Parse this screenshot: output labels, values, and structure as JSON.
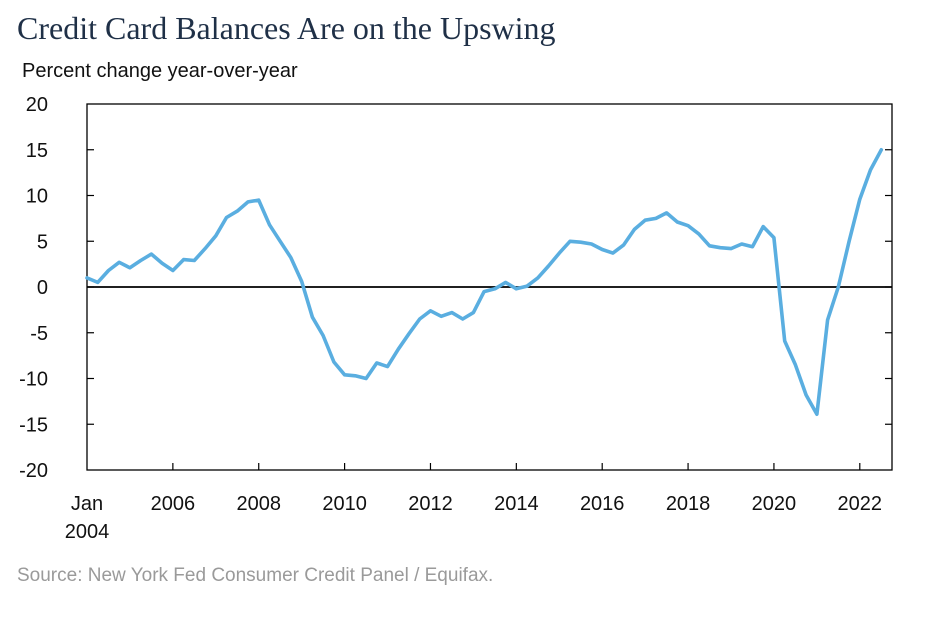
{
  "title": "Credit Card Balances Are on the Upswing",
  "subtitle": "Percent change year-over-year",
  "source": "Source: New York Fed Consumer Credit Panel / Equifax.",
  "colors": {
    "series": "#5aaee0",
    "zero_line": "#000000",
    "axis": "#000000",
    "title": "#1f3047",
    "source": "#9a9a9a"
  },
  "chart_data": {
    "type": "line",
    "ylabel": "Percent change year-over-year",
    "ylim": [
      -20,
      20
    ],
    "yticks": [
      20,
      15,
      10,
      5,
      0,
      -5,
      -10,
      -15,
      -20
    ],
    "xlim": [
      2004,
      2022.75
    ],
    "xticks": [
      {
        "x": 2004,
        "label": "Jan",
        "sublabel": "2004"
      },
      {
        "x": 2006,
        "label": "2006"
      },
      {
        "x": 2008,
        "label": "2008"
      },
      {
        "x": 2010,
        "label": "2010"
      },
      {
        "x": 2012,
        "label": "2012"
      },
      {
        "x": 2014,
        "label": "2014"
      },
      {
        "x": 2016,
        "label": "2016"
      },
      {
        "x": 2018,
        "label": "2018"
      },
      {
        "x": 2020,
        "label": "2020"
      },
      {
        "x": 2022,
        "label": "2022"
      }
    ],
    "grid": false,
    "legend": "none",
    "series": [
      {
        "x": [
          2004.0,
          2004.25,
          2004.5,
          2004.75,
          2005.0,
          2005.25,
          2005.5,
          2005.75,
          2006.0,
          2006.25,
          2006.5,
          2006.75,
          2007.0,
          2007.25,
          2007.5,
          2007.75,
          2008.0,
          2008.25,
          2008.5,
          2008.75,
          2009.0,
          2009.25,
          2009.5,
          2009.75,
          2010.0,
          2010.25,
          2010.5,
          2010.75,
          2011.0,
          2011.25,
          2011.5,
          2011.75,
          2012.0,
          2012.25,
          2012.5,
          2012.75,
          2013.0,
          2013.25,
          2013.5,
          2013.75,
          2014.0,
          2014.25,
          2014.5,
          2014.75,
          2015.0,
          2015.25,
          2015.5,
          2015.75,
          2016.0,
          2016.25,
          2016.5,
          2016.75,
          2017.0,
          2017.25,
          2017.5,
          2017.75,
          2018.0,
          2018.25,
          2018.5,
          2018.75,
          2019.0,
          2019.25,
          2019.5,
          2019.75,
          2020.0,
          2020.25,
          2020.5,
          2020.75,
          2021.0,
          2021.25,
          2021.5,
          2021.75,
          2022.0,
          2022.25,
          2022.5
        ],
        "values": [
          1.0,
          0.5,
          1.8,
          2.7,
          2.1,
          2.9,
          3.6,
          2.6,
          1.8,
          3.0,
          2.9,
          4.2,
          5.6,
          7.6,
          8.3,
          9.3,
          9.5,
          6.8,
          5.0,
          3.2,
          0.6,
          -3.3,
          -5.3,
          -8.2,
          -9.6,
          -9.7,
          -10.0,
          -8.3,
          -8.7,
          -6.8,
          -5.1,
          -3.5,
          -2.6,
          -3.2,
          -2.8,
          -3.5,
          -2.8,
          -0.5,
          -0.2,
          0.5,
          -0.2,
          0.1,
          1.0,
          2.3,
          3.7,
          5.0,
          4.9,
          4.7,
          4.1,
          3.7,
          4.6,
          6.3,
          7.3,
          7.5,
          8.1,
          7.1,
          6.7,
          5.8,
          4.5,
          4.3,
          4.2,
          4.7,
          4.4,
          6.6,
          5.4,
          -5.9,
          -8.5,
          -11.8,
          -13.9,
          -3.6,
          0.0,
          5.0,
          9.6,
          12.8,
          15.0
        ]
      }
    ]
  }
}
